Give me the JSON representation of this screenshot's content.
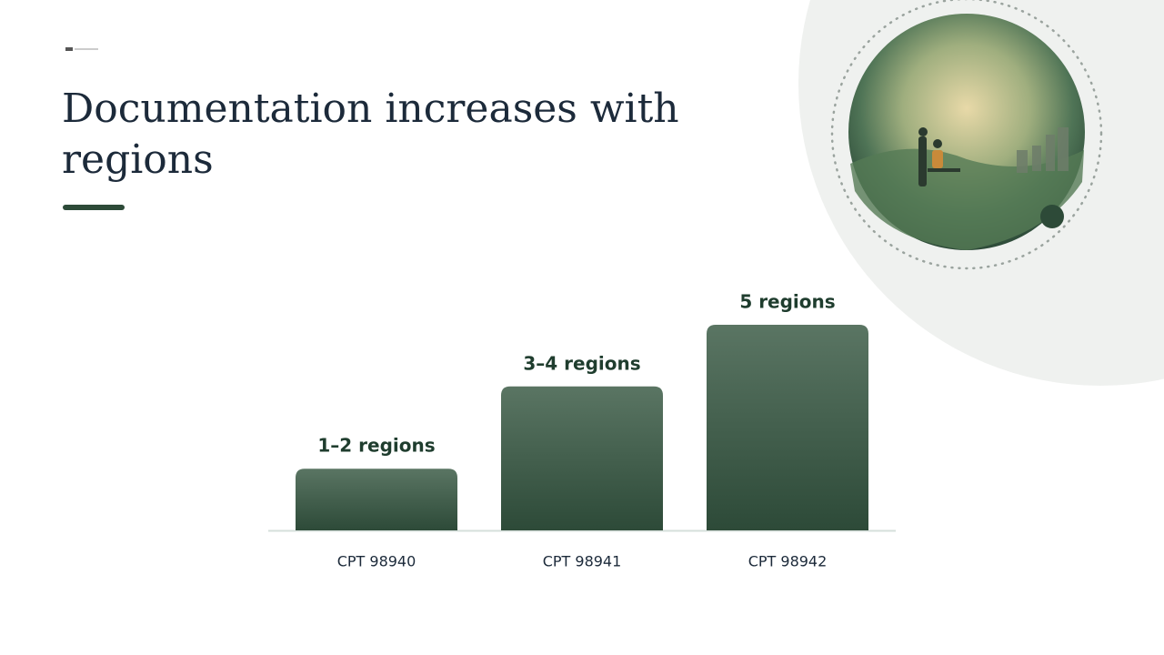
{
  "chart_data": {
    "type": "bar",
    "title": "Documentation increases with regions",
    "categories": [
      "CPT 98940",
      "CPT 98941",
      "CPT 98942"
    ],
    "values": [
      1.5,
      3.5,
      5
    ],
    "value_labels": [
      "1–2 regions",
      "3–4 regions",
      "5 regions"
    ],
    "color": "#2d4a38",
    "ylim": [
      0,
      5
    ]
  }
}
